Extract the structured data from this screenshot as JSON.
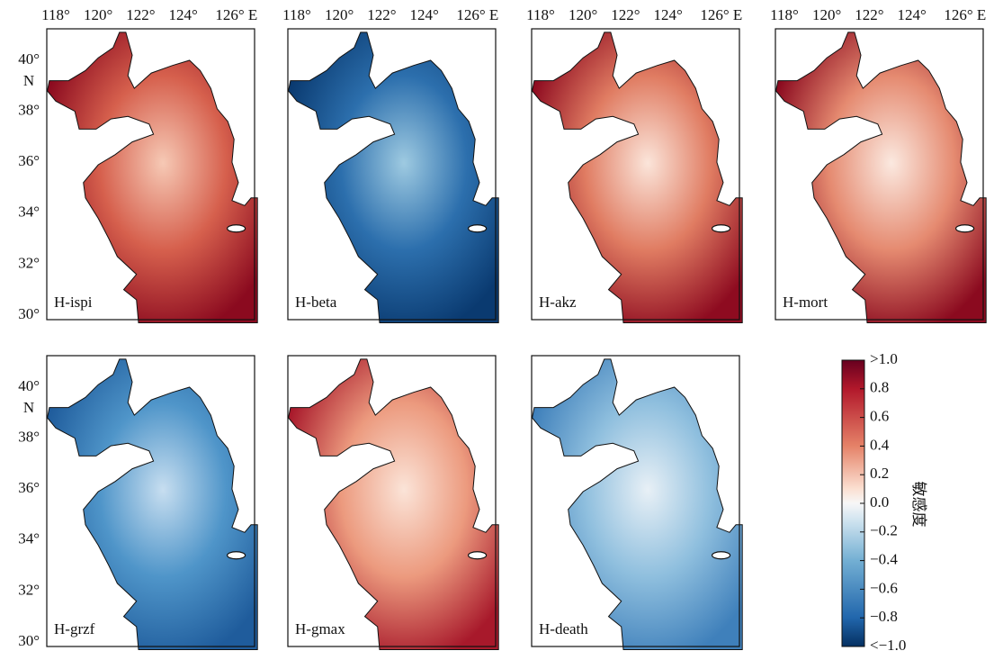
{
  "panels": [
    {
      "label": "H-ispi"
    },
    {
      "label": "H-beta"
    },
    {
      "label": "H-akz"
    },
    {
      "label": "H-mort"
    },
    {
      "label": "H-grzf"
    },
    {
      "label": "H-gmax"
    },
    {
      "label": "H-death"
    }
  ],
  "lon_labels": [
    "118°",
    "120°",
    "122°",
    "124°",
    "126° E"
  ],
  "lat_labels": [
    "40°",
    "38°",
    "36°",
    "34°",
    "32°",
    "30°"
  ],
  "lat_unit": "N",
  "colorbar": {
    "label": "敏感度",
    "clim": [
      -1,
      1
    ],
    "ticks": [
      {
        "value": 1,
        "label": ">1.0"
      },
      0.8,
      0.6,
      0.4,
      0.2,
      {
        "value": 0,
        "label": "0.0"
      },
      {
        "value": -0.2,
        "label": "−0.2"
      },
      {
        "value": -0.4,
        "label": "−0.4"
      },
      {
        "value": -0.6,
        "label": "−0.6"
      },
      {
        "value": -0.8,
        "label": "−0.8"
      },
      {
        "value": -1,
        "label": "<−1.0"
      }
    ]
  }
}
